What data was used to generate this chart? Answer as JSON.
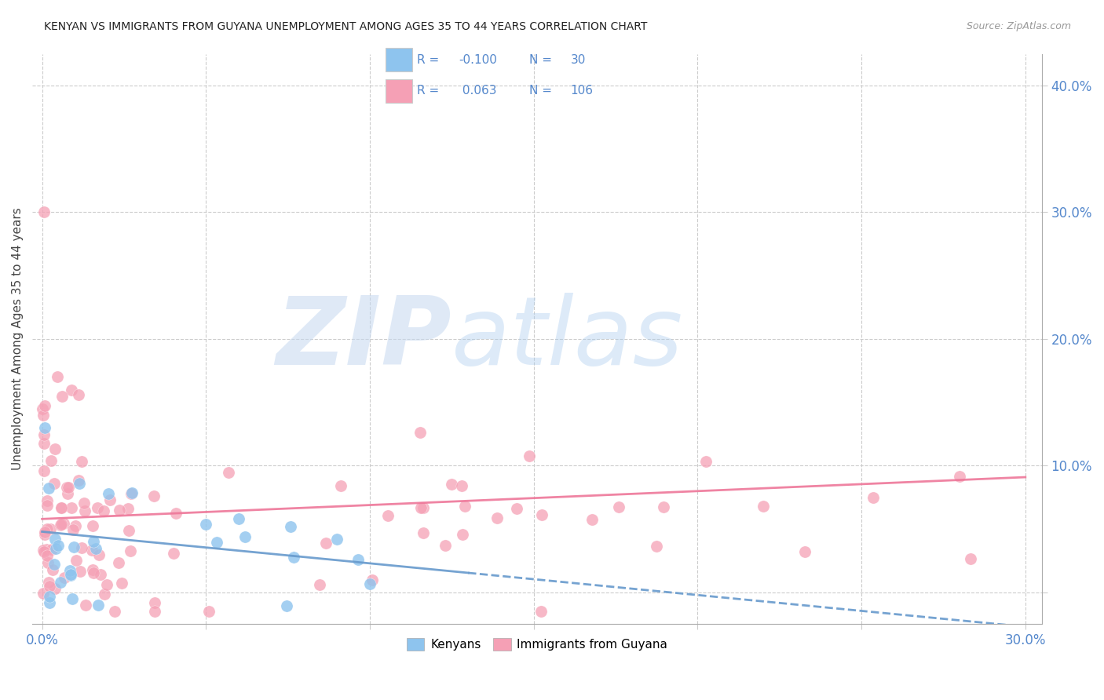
{
  "title": "KENYAN VS IMMIGRANTS FROM GUYANA UNEMPLOYMENT AMONG AGES 35 TO 44 YEARS CORRELATION CHART",
  "source": "Source: ZipAtlas.com",
  "ylabel": "Unemployment Among Ages 35 to 44 years",
  "xlim": [
    -0.003,
    0.305
  ],
  "ylim": [
    -0.025,
    0.425
  ],
  "xticks": [
    0.0,
    0.05,
    0.1,
    0.15,
    0.2,
    0.25,
    0.3
  ],
  "xtick_labels": [
    "0.0%",
    "",
    "",
    "",
    "",
    "",
    "30.0%"
  ],
  "yticks_right": [
    0.0,
    0.1,
    0.2,
    0.3,
    0.4
  ],
  "ytick_right_labels": [
    "",
    "10.0%",
    "20.0%",
    "30.0%",
    "40.0%"
  ],
  "legend_R1": "-0.100",
  "legend_N1": "30",
  "legend_R2": "0.063",
  "legend_N2": "106",
  "color_blue": "#8EC4EE",
  "color_pink": "#F5A0B5",
  "color_blue_line": "#6699CC",
  "color_pink_line": "#EE7799",
  "color_axis_text": "#5588CC",
  "watermark_zip_color": "#C5D8F0",
  "watermark_atlas_color": "#AACCEE"
}
